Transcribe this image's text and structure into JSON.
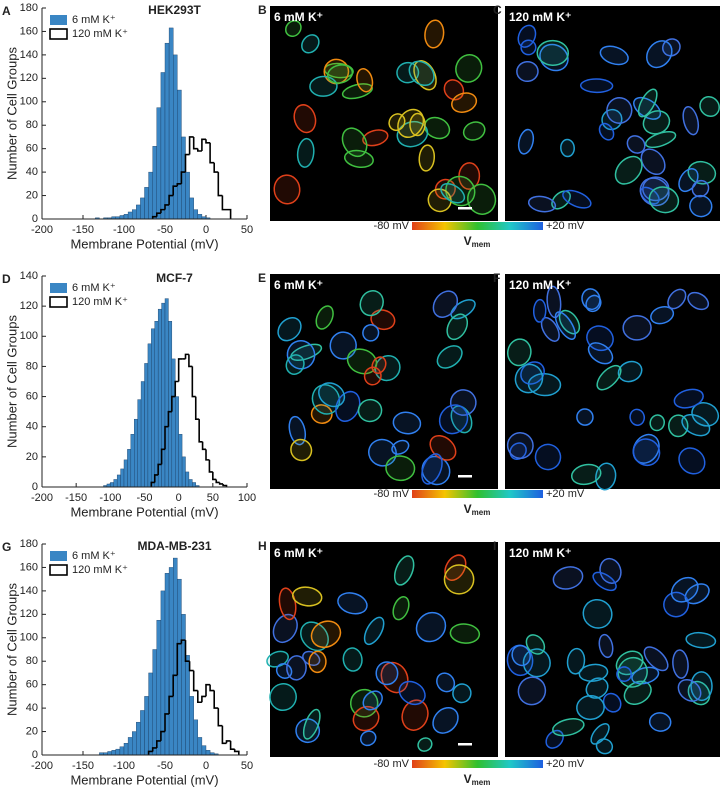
{
  "chart_data": [
    {
      "type": "histogram",
      "panel_label": "A",
      "title": "HEK293T",
      "x_label": "Membrane Potential (mV)",
      "y_label": "Number of Cell Groups",
      "xlim": [
        -200,
        50
      ],
      "xticks": [
        -200,
        -150,
        -100,
        -50,
        0,
        50
      ],
      "ylim": [
        0,
        180
      ],
      "yticks": [
        0,
        20,
        40,
        60,
        80,
        100,
        120,
        140,
        160,
        180
      ],
      "legend": "upper left",
      "series": [
        {
          "name": "6 mM K⁺",
          "color": "#3a86c4",
          "style": "filled",
          "bins": [
            -135,
            -130,
            -125,
            -120,
            -115,
            -110,
            -105,
            -100,
            -95,
            -90,
            -85,
            -80,
            -75,
            -70,
            -65,
            -60,
            -55,
            -50,
            -45,
            -40,
            -35,
            -30,
            -25,
            -20,
            -15,
            -10,
            -5,
            0,
            5
          ],
          "values": [
            1,
            0,
            1,
            1,
            2,
            2,
            3,
            4,
            6,
            8,
            12,
            18,
            27,
            40,
            62,
            95,
            125,
            150,
            163,
            140,
            110,
            70,
            40,
            18,
            8,
            4,
            2,
            1
          ]
        },
        {
          "name": "120 mM K⁺",
          "color": "#000000",
          "style": "outline",
          "bins": [
            -65,
            -60,
            -55,
            -50,
            -45,
            -40,
            -35,
            -30,
            -25,
            -20,
            -15,
            -10,
            -5,
            0,
            5,
            10,
            15,
            20,
            25,
            30
          ],
          "values": [
            2,
            5,
            8,
            12,
            20,
            28,
            30,
            40,
            55,
            70,
            60,
            58,
            68,
            65,
            48,
            40,
            20,
            8,
            8
          ]
        }
      ]
    },
    {
      "type": "histogram",
      "panel_label": "D",
      "title": "MCF-7",
      "x_label": "Membrane Potential (mV)",
      "y_label": "Number of Cell Groups",
      "xlim": [
        -200,
        100
      ],
      "xticks": [
        -200,
        -150,
        -100,
        -50,
        0,
        50,
        100
      ],
      "ylim": [
        0,
        140
      ],
      "yticks": [
        0,
        20,
        40,
        60,
        80,
        100,
        120,
        140
      ],
      "legend": "upper left",
      "series": [
        {
          "name": "6 mM K⁺",
          "color": "#3a86c4",
          "style": "filled",
          "bins": [
            -110,
            -105,
            -100,
            -95,
            -90,
            -85,
            -80,
            -75,
            -70,
            -65,
            -60,
            -55,
            -50,
            -45,
            -40,
            -35,
            -30,
            -25,
            -20,
            -15,
            -10,
            -5,
            0,
            5,
            10,
            15,
            20,
            25,
            30
          ],
          "values": [
            1,
            2,
            3,
            5,
            8,
            12,
            18,
            25,
            35,
            45,
            58,
            70,
            82,
            95,
            105,
            110,
            118,
            122,
            125,
            110,
            85,
            60,
            35,
            20,
            10,
            5,
            3,
            1
          ]
        },
        {
          "name": "120 mM K⁺",
          "color": "#000000",
          "style": "outline",
          "bins": [
            -40,
            -35,
            -30,
            -25,
            -20,
            -15,
            -10,
            -5,
            0,
            5,
            10,
            15,
            20,
            25,
            30,
            35,
            40,
            45,
            50,
            55,
            60,
            65,
            70
          ],
          "values": [
            3,
            8,
            15,
            25,
            40,
            50,
            60,
            70,
            85,
            85,
            88,
            80,
            60,
            45,
            30,
            25,
            18,
            10,
            5,
            3,
            2,
            1
          ]
        }
      ]
    },
    {
      "type": "histogram",
      "panel_label": "G",
      "title": "MDA-MB-231",
      "x_label": "Membrane Potential (mV)",
      "y_label": "Number of Cell Groups",
      "xlim": [
        -200,
        50
      ],
      "xticks": [
        -200,
        -150,
        -100,
        -50,
        0,
        50
      ],
      "ylim": [
        0,
        180
      ],
      "yticks": [
        0,
        20,
        40,
        60,
        80,
        100,
        120,
        140,
        160,
        180
      ],
      "legend": "upper left",
      "series": [
        {
          "name": "6 mM K⁺",
          "color": "#3a86c4",
          "style": "filled",
          "bins": [
            -130,
            -125,
            -120,
            -115,
            -110,
            -105,
            -100,
            -95,
            -90,
            -85,
            -80,
            -75,
            -70,
            -65,
            -60,
            -55,
            -50,
            -45,
            -40,
            -35,
            -30,
            -25,
            -20,
            -15,
            -10,
            -5,
            0,
            5,
            10,
            15
          ],
          "values": [
            2,
            2,
            3,
            4,
            5,
            7,
            10,
            15,
            20,
            28,
            38,
            50,
            70,
            90,
            115,
            140,
            155,
            160,
            168,
            150,
            120,
            85,
            50,
            30,
            15,
            8,
            4,
            2,
            1
          ]
        },
        {
          "name": "120 mM K⁺",
          "color": "#000000",
          "style": "outline",
          "bins": [
            -70,
            -65,
            -60,
            -55,
            -50,
            -45,
            -40,
            -35,
            -30,
            -25,
            -20,
            -15,
            -10,
            -5,
            0,
            5,
            10,
            15,
            20,
            25,
            30,
            35,
            40
          ],
          "values": [
            3,
            6,
            12,
            20,
            35,
            50,
            68,
            95,
            98,
            80,
            72,
            55,
            45,
            50,
            60,
            55,
            40,
            25,
            10,
            12,
            5,
            3
          ]
        }
      ]
    }
  ],
  "images": [
    {
      "label": "B",
      "title": "6 mM K⁺"
    },
    {
      "label": "C",
      "title": "120 mM K⁺"
    },
    {
      "label": "E",
      "title": "6 mM K⁺"
    },
    {
      "label": "F",
      "title": "120 mM K⁺"
    },
    {
      "label": "H",
      "title": "6 mM K⁺"
    },
    {
      "label": "I",
      "title": "120 mM K⁺"
    }
  ],
  "colorbars": [
    {
      "min_label": "-80 mV",
      "max_label": "+20 mV",
      "title": "V",
      "subscript": "mem"
    },
    {
      "min_label": "-80 mV",
      "max_label": "+20 mV",
      "title": "V",
      "subscript": "mem"
    },
    {
      "min_label": "-80 mV",
      "max_label": "+20 mV",
      "title": "V",
      "subscript": "mem"
    }
  ]
}
